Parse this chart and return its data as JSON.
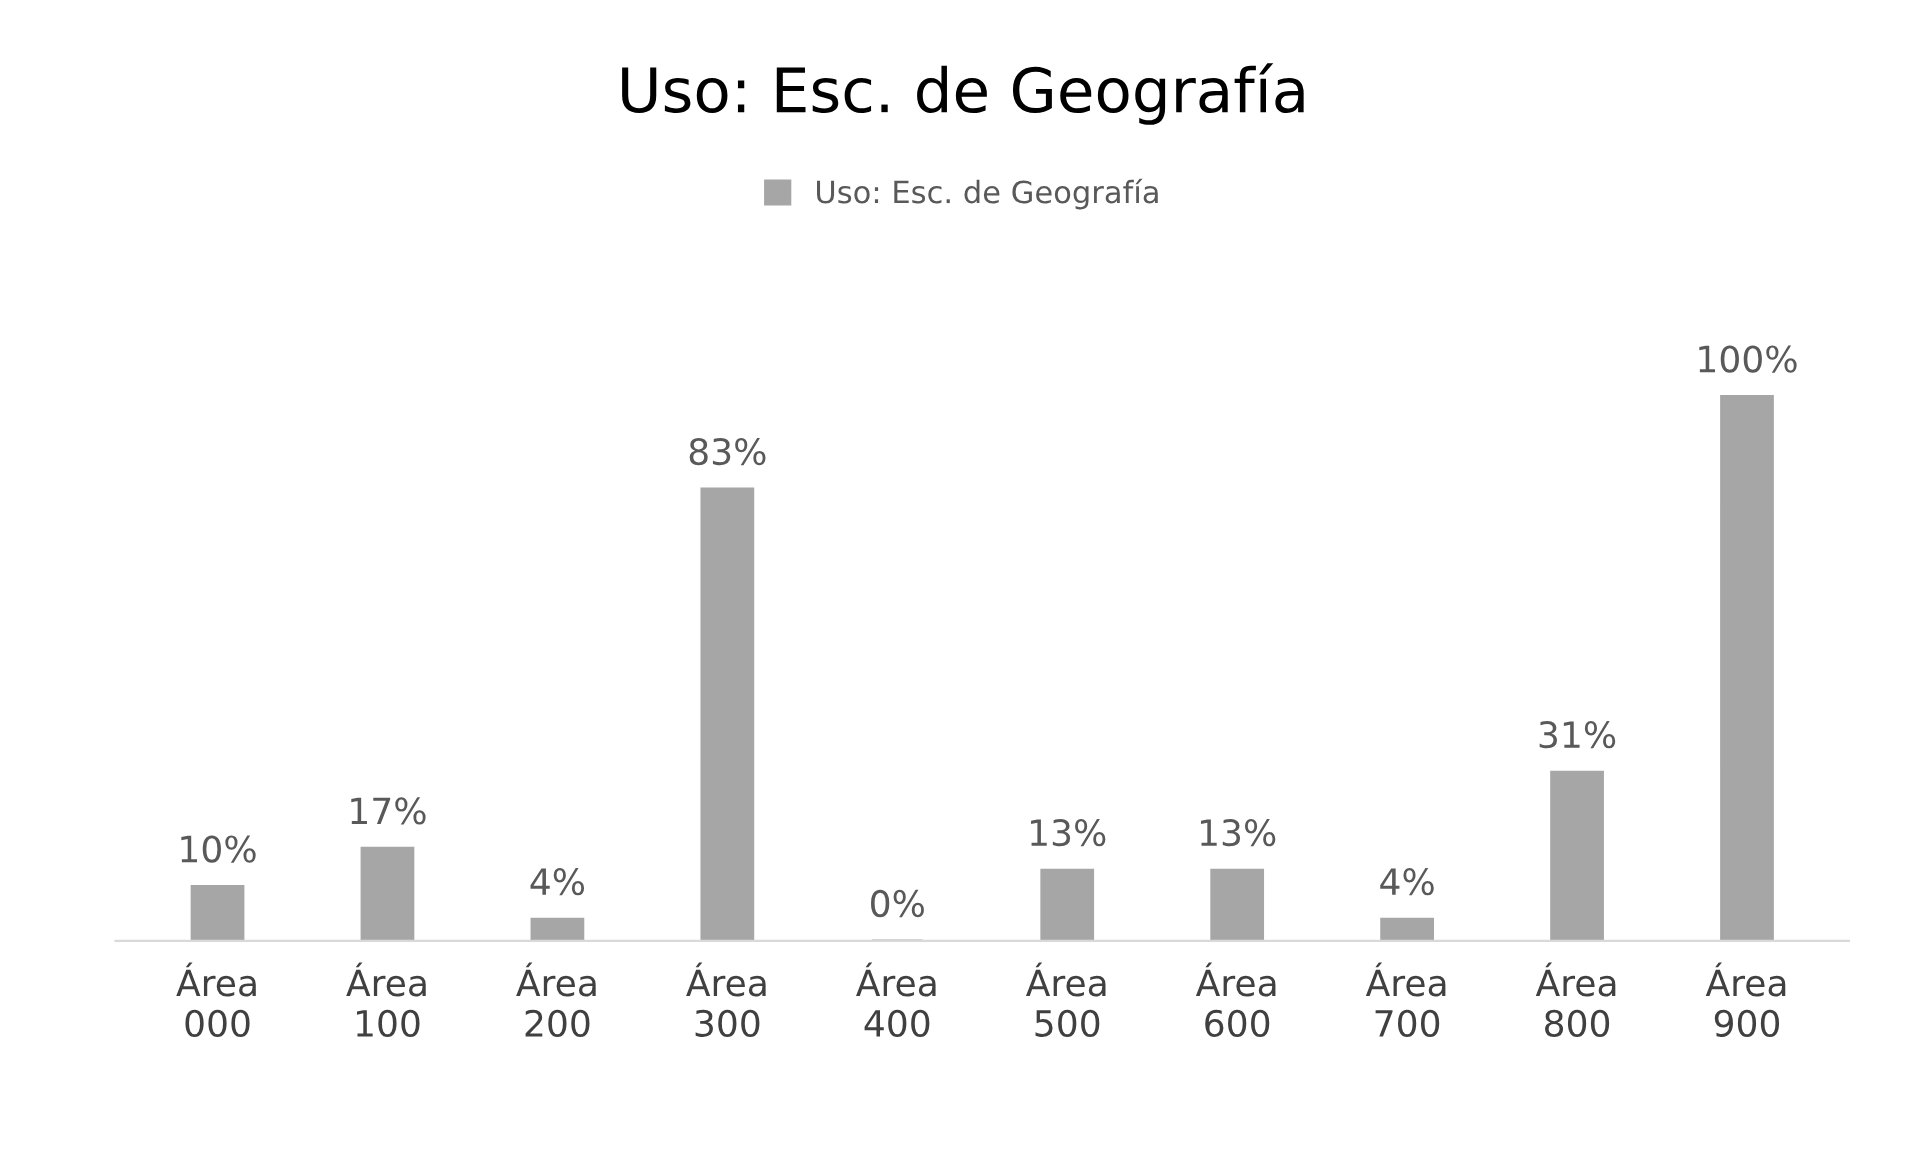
{
  "chart_data": {
    "type": "bar",
    "title": "Uso: Esc. de Geografía",
    "categories": [
      "Área\n000",
      "Área\n100",
      "Área\n200",
      "Área\n300",
      "Área\n400",
      "Área\n500",
      "Área\n600",
      "Área\n700",
      "Área\n800",
      "Área\n900"
    ],
    "series": [
      {
        "name": "Uso: Esc. de Geografía",
        "color": "#a6a6a6",
        "values": [
          10,
          17,
          4,
          83,
          0,
          13,
          13,
          4,
          31,
          100
        ],
        "value_labels": [
          "10%",
          "17%",
          "4%",
          "83%",
          "0%",
          "13%",
          "13%",
          "4%",
          "31%",
          "100%"
        ]
      }
    ],
    "legend": "top",
    "grid": false
  }
}
